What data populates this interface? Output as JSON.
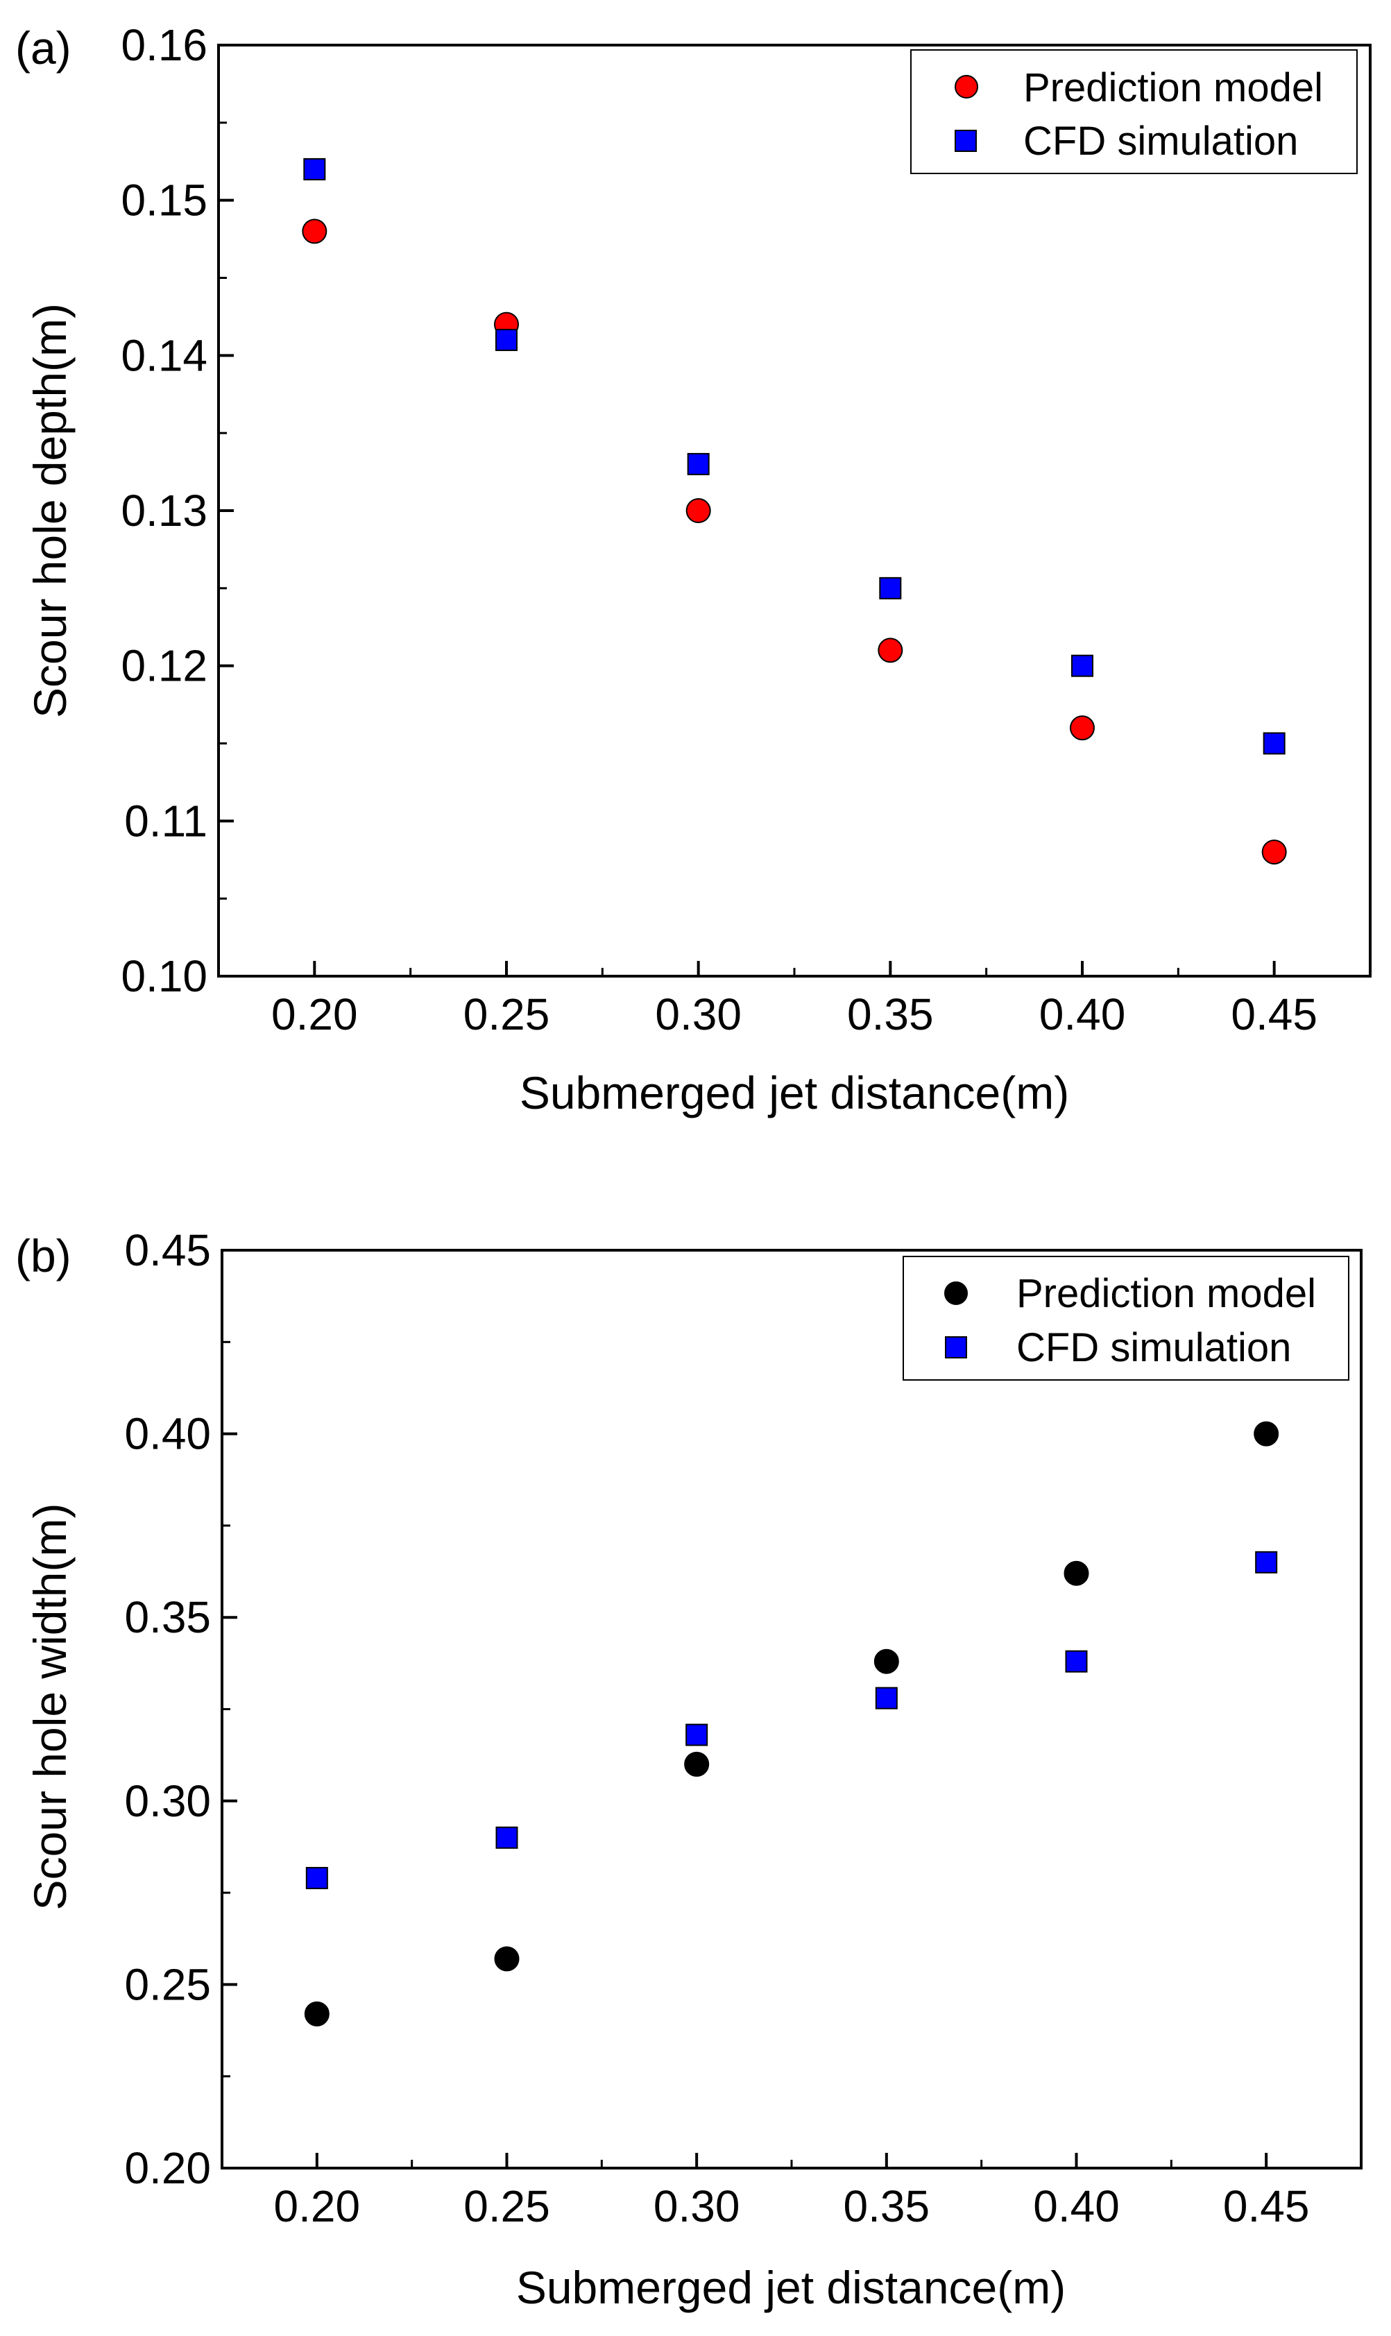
{
  "chart_data": [
    {
      "type": "scatter",
      "panel_label": "(a)",
      "xlabel": "Submerged jet distance(m)",
      "ylabel": "Scour hole depth(m)",
      "xlim": [
        0.175,
        0.475
      ],
      "ylim": [
        0.1,
        0.16
      ],
      "xticks": [
        "0.20",
        "0.25",
        "0.30",
        "0.35",
        "0.40",
        "0.45"
      ],
      "yticks": [
        "0.10",
        "0.11",
        "0.12",
        "0.13",
        "0.14",
        "0.15",
        "0.16"
      ],
      "legend_position": "top-right",
      "x": [
        0.2,
        0.25,
        0.3,
        0.35,
        0.4,
        0.45
      ],
      "series": [
        {
          "name": "Prediction model",
          "marker": "circle",
          "color": "#ff0000",
          "values": [
            0.148,
            0.142,
            0.13,
            0.121,
            0.116,
            0.108
          ]
        },
        {
          "name": "CFD simulation",
          "marker": "square",
          "color": "#0000ff",
          "values": [
            0.152,
            0.141,
            0.133,
            0.125,
            0.12,
            0.115
          ]
        }
      ]
    },
    {
      "type": "scatter",
      "panel_label": "(b)",
      "xlabel": "Submerged jet distance(m)",
      "ylabel": "Scour hole width(m)",
      "xlim": [
        0.175,
        0.475
      ],
      "ylim": [
        0.2,
        0.45
      ],
      "xticks": [
        "0.20",
        "0.25",
        "0.30",
        "0.35",
        "0.40",
        "0.45"
      ],
      "yticks": [
        "0.20",
        "0.25",
        "0.30",
        "0.35",
        "0.40",
        "0.45"
      ],
      "legend_position": "top-right",
      "x": [
        0.2,
        0.25,
        0.3,
        0.35,
        0.4,
        0.45
      ],
      "series": [
        {
          "name": "Prediction model",
          "marker": "circle",
          "color": "#000000",
          "values": [
            0.242,
            0.257,
            0.31,
            0.338,
            0.362,
            0.4
          ]
        },
        {
          "name": "CFD simulation",
          "marker": "square",
          "color": "#0000ff",
          "values": [
            0.279,
            0.29,
            0.318,
            0.328,
            0.338,
            0.365
          ]
        }
      ]
    }
  ]
}
